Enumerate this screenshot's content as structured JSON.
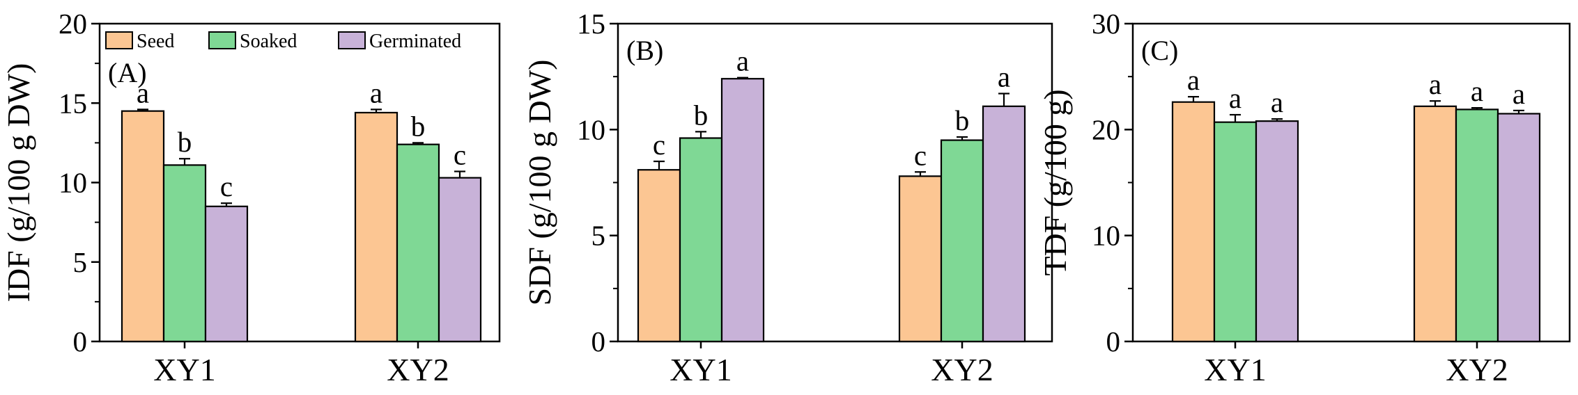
{
  "chart_data": [
    {
      "type": "bar",
      "panel_label": "(A)",
      "ylabel": "IDF (g/100 g DW)",
      "ylim": [
        0,
        20
      ],
      "yticks": [
        0,
        5,
        10,
        15,
        20
      ],
      "categories": [
        "XY1",
        "XY2"
      ],
      "series": [
        {
          "name": "Seed",
          "values": [
            14.5,
            14.4
          ],
          "errors": [
            0.1,
            0.2
          ],
          "letters": [
            "a",
            "a"
          ]
        },
        {
          "name": "Soaked",
          "values": [
            11.1,
            12.4
          ],
          "errors": [
            0.4,
            0.1
          ],
          "letters": [
            "b",
            "b"
          ]
        },
        {
          "name": "Germinated",
          "values": [
            8.5,
            10.3
          ],
          "errors": [
            0.2,
            0.4
          ],
          "letters": [
            "c",
            "c"
          ]
        }
      ],
      "legend": "top-left"
    },
    {
      "type": "bar",
      "panel_label": "(B)",
      "ylabel": "SDF (g/100 g DW)",
      "ylim": [
        0,
        15
      ],
      "yticks": [
        0,
        5,
        10,
        15
      ],
      "categories": [
        "XY1",
        "XY2"
      ],
      "series": [
        {
          "name": "Seed",
          "values": [
            8.1,
            7.8
          ],
          "errors": [
            0.4,
            0.2
          ],
          "letters": [
            "c",
            "c"
          ]
        },
        {
          "name": "Soaked",
          "values": [
            9.6,
            9.5
          ],
          "errors": [
            0.3,
            0.15
          ],
          "letters": [
            "b",
            "b"
          ]
        },
        {
          "name": "Germinated",
          "values": [
            12.4,
            11.1
          ],
          "errors": [
            0.05,
            0.6
          ],
          "letters": [
            "a",
            "a"
          ]
        }
      ]
    },
    {
      "type": "bar",
      "panel_label": "(C)",
      "ylabel": "TDF (g/100 g)",
      "ylim": [
        0,
        30
      ],
      "yticks": [
        0,
        10,
        20,
        30
      ],
      "categories": [
        "XY1",
        "XY2"
      ],
      "series": [
        {
          "name": "Seed",
          "values": [
            22.6,
            22.2
          ],
          "errors": [
            0.5,
            0.5
          ],
          "letters": [
            "a",
            "a"
          ]
        },
        {
          "name": "Soaked",
          "values": [
            20.7,
            21.9
          ],
          "errors": [
            0.7,
            0.15
          ],
          "letters": [
            "a",
            "a"
          ]
        },
        {
          "name": "Germinated",
          "values": [
            20.8,
            21.5
          ],
          "errors": [
            0.2,
            0.3
          ],
          "letters": [
            "a",
            "a"
          ]
        }
      ]
    }
  ],
  "colors": {
    "Seed": "#fcc693",
    "Soaked": "#7fd895",
    "Germinated": "#c8b2d8",
    "axis": "#000000"
  }
}
